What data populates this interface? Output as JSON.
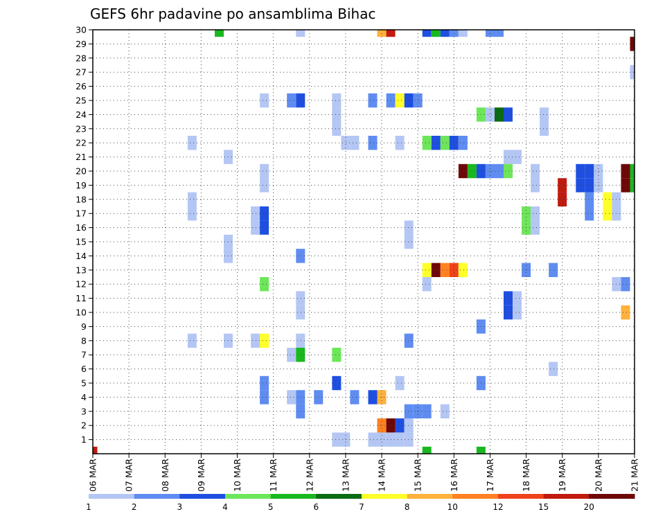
{
  "chart_data": {
    "type": "heatmap",
    "title": "GEFS 6hr padavine po ansamblima Bihac",
    "xlabel": "",
    "ylabel": "",
    "x_ticks": [
      "06 MAR",
      "07 MAR",
      "08 MAR",
      "09 MAR",
      "10 MAR",
      "11 MAR",
      "12 MAR",
      "13 MAR",
      "14 MAR",
      "15 MAR",
      "16 MAR",
      "17 MAR",
      "18 MAR",
      "19 MAR",
      "20 MAR",
      "21 MAR"
    ],
    "y_ticks": [
      "1",
      "2",
      "3",
      "4",
      "5",
      "6",
      "7",
      "8",
      "9",
      "10",
      "11",
      "12",
      "13",
      "14",
      "15",
      "16",
      "17",
      "18",
      "19",
      "20",
      "21",
      "22",
      "23",
      "24",
      "25",
      "26",
      "27",
      "28",
      "29",
      "30"
    ],
    "x_range_days": [
      0,
      15
    ],
    "y_range": [
      0,
      30
    ],
    "grid": true,
    "colorbar": {
      "labels": [
        "1",
        "2",
        "3",
        "4",
        "5",
        "6",
        "7",
        "8",
        "10",
        "12",
        "15",
        "20"
      ],
      "colors": [
        "#b4c6f3",
        "#5f8cf0",
        "#1f4fe0",
        "#6de659",
        "#19b81f",
        "#0b6b12",
        "#ffff2a",
        "#ffb13b",
        "#ff8122",
        "#f0421a",
        "#c11a0e",
        "#6e0808"
      ]
    },
    "cells": [
      {
        "x": 3.5,
        "y": 30,
        "v": 5
      },
      {
        "x": 5.75,
        "y": 30,
        "v": 1
      },
      {
        "x": 8,
        "y": 30,
        "v": 8
      },
      {
        "x": 8.25,
        "y": 30,
        "v": 15
      },
      {
        "x": 9.25,
        "y": 30,
        "v": 3
      },
      {
        "x": 9.5,
        "y": 30,
        "v": 5
      },
      {
        "x": 9.75,
        "y": 30,
        "v": 3
      },
      {
        "x": 10,
        "y": 30,
        "v": 2
      },
      {
        "x": 10.25,
        "y": 30,
        "v": 1
      },
      {
        "x": 11,
        "y": 30,
        "v": 2
      },
      {
        "x": 11.25,
        "y": 30,
        "v": 2
      },
      {
        "x": 15,
        "y": 29,
        "v": 20
      },
      {
        "x": 15,
        "y": 27,
        "v": 1
      },
      {
        "x": 4.75,
        "y": 25,
        "v": 1
      },
      {
        "x": 5.5,
        "y": 25,
        "v": 2
      },
      {
        "x": 5.75,
        "y": 25,
        "v": 3
      },
      {
        "x": 6.75,
        "y": 25,
        "v": 1
      },
      {
        "x": 7.75,
        "y": 25,
        "v": 2
      },
      {
        "x": 8.25,
        "y": 25,
        "v": 2
      },
      {
        "x": 8.5,
        "y": 25,
        "v": 7
      },
      {
        "x": 8.75,
        "y": 25,
        "v": 3
      },
      {
        "x": 9,
        "y": 25,
        "v": 2
      },
      {
        "x": 6.75,
        "y": 24,
        "v": 1
      },
      {
        "x": 10.75,
        "y": 24,
        "v": 4
      },
      {
        "x": 11,
        "y": 24,
        "v": 1
      },
      {
        "x": 11.25,
        "y": 24,
        "v": 6
      },
      {
        "x": 11.5,
        "y": 24,
        "v": 3
      },
      {
        "x": 12.5,
        "y": 24,
        "v": 1
      },
      {
        "x": 6.75,
        "y": 23,
        "v": 1
      },
      {
        "x": 12.5,
        "y": 23,
        "v": 1
      },
      {
        "x": 2.75,
        "y": 22,
        "v": 1
      },
      {
        "x": 7,
        "y": 22,
        "v": 1
      },
      {
        "x": 7.25,
        "y": 22,
        "v": 1
      },
      {
        "x": 7.75,
        "y": 22,
        "v": 2
      },
      {
        "x": 8.5,
        "y": 22,
        "v": 1
      },
      {
        "x": 9.25,
        "y": 22,
        "v": 4
      },
      {
        "x": 9.5,
        "y": 22,
        "v": 3
      },
      {
        "x": 9.75,
        "y": 22,
        "v": 4
      },
      {
        "x": 10,
        "y": 22,
        "v": 3
      },
      {
        "x": 10.25,
        "y": 22,
        "v": 2
      },
      {
        "x": 3.75,
        "y": 21,
        "v": 1
      },
      {
        "x": 11.5,
        "y": 21,
        "v": 1
      },
      {
        "x": 11.75,
        "y": 21,
        "v": 1
      },
      {
        "x": 4.75,
        "y": 20,
        "v": 1
      },
      {
        "x": 10.25,
        "y": 20,
        "v": 20
      },
      {
        "x": 10.5,
        "y": 20,
        "v": 5
      },
      {
        "x": 10.75,
        "y": 20,
        "v": 3
      },
      {
        "x": 11,
        "y": 20,
        "v": 2
      },
      {
        "x": 11.25,
        "y": 20,
        "v": 2
      },
      {
        "x": 11.5,
        "y": 20,
        "v": 4
      },
      {
        "x": 12.25,
        "y": 20,
        "v": 1
      },
      {
        "x": 13.5,
        "y": 20,
        "v": 3
      },
      {
        "x": 13.75,
        "y": 20,
        "v": 3
      },
      {
        "x": 14,
        "y": 20,
        "v": 1
      },
      {
        "x": 14.75,
        "y": 20,
        "v": 20
      },
      {
        "x": 15,
        "y": 20,
        "v": 5
      },
      {
        "x": 4.75,
        "y": 19,
        "v": 1
      },
      {
        "x": 12.25,
        "y": 19,
        "v": 1
      },
      {
        "x": 13,
        "y": 19,
        "v": 15
      },
      {
        "x": 13.5,
        "y": 19,
        "v": 3
      },
      {
        "x": 13.75,
        "y": 19,
        "v": 3
      },
      {
        "x": 14,
        "y": 19,
        "v": 1
      },
      {
        "x": 14.75,
        "y": 19,
        "v": 20
      },
      {
        "x": 15,
        "y": 19,
        "v": 5
      },
      {
        "x": 2.75,
        "y": 18,
        "v": 1
      },
      {
        "x": 13,
        "y": 18,
        "v": 15
      },
      {
        "x": 13.75,
        "y": 18,
        "v": 2
      },
      {
        "x": 14.25,
        "y": 18,
        "v": 7
      },
      {
        "x": 14.5,
        "y": 18,
        "v": 1
      },
      {
        "x": 2.75,
        "y": 17,
        "v": 1
      },
      {
        "x": 4.5,
        "y": 17,
        "v": 1
      },
      {
        "x": 4.75,
        "y": 17,
        "v": 3
      },
      {
        "x": 12,
        "y": 17,
        "v": 4
      },
      {
        "x": 12.25,
        "y": 17,
        "v": 1
      },
      {
        "x": 13.75,
        "y": 17,
        "v": 2
      },
      {
        "x": 14.25,
        "y": 17,
        "v": 7
      },
      {
        "x": 14.5,
        "y": 17,
        "v": 1
      },
      {
        "x": 4.5,
        "y": 16,
        "v": 1
      },
      {
        "x": 4.75,
        "y": 16,
        "v": 3
      },
      {
        "x": 8.75,
        "y": 16,
        "v": 1
      },
      {
        "x": 12,
        "y": 16,
        "v": 4
      },
      {
        "x": 12.25,
        "y": 16,
        "v": 1
      },
      {
        "x": 3.75,
        "y": 15,
        "v": 1
      },
      {
        "x": 8.75,
        "y": 15,
        "v": 1
      },
      {
        "x": 3.75,
        "y": 14,
        "v": 1
      },
      {
        "x": 5.75,
        "y": 14,
        "v": 2
      },
      {
        "x": 9.25,
        "y": 13,
        "v": 7
      },
      {
        "x": 9.5,
        "y": 13,
        "v": 20
      },
      {
        "x": 9.75,
        "y": 13,
        "v": 10
      },
      {
        "x": 10,
        "y": 13,
        "v": 12
      },
      {
        "x": 10.25,
        "y": 13,
        "v": 7
      },
      {
        "x": 12,
        "y": 13,
        "v": 2
      },
      {
        "x": 12.75,
        "y": 13,
        "v": 2
      },
      {
        "x": 4.75,
        "y": 12,
        "v": 4
      },
      {
        "x": 9.25,
        "y": 12,
        "v": 1
      },
      {
        "x": 14.5,
        "y": 12,
        "v": 1
      },
      {
        "x": 14.75,
        "y": 12,
        "v": 2
      },
      {
        "x": 5.75,
        "y": 11,
        "v": 1
      },
      {
        "x": 11.5,
        "y": 11,
        "v": 3
      },
      {
        "x": 11.75,
        "y": 11,
        "v": 1
      },
      {
        "x": 5.75,
        "y": 10,
        "v": 1
      },
      {
        "x": 11.5,
        "y": 10,
        "v": 3
      },
      {
        "x": 11.75,
        "y": 10,
        "v": 1
      },
      {
        "x": 14.75,
        "y": 10,
        "v": 8
      },
      {
        "x": 10.75,
        "y": 9,
        "v": 2
      },
      {
        "x": 2.75,
        "y": 8,
        "v": 1
      },
      {
        "x": 3.75,
        "y": 8,
        "v": 1
      },
      {
        "x": 4.5,
        "y": 8,
        "v": 1
      },
      {
        "x": 4.75,
        "y": 8,
        "v": 7
      },
      {
        "x": 5.75,
        "y": 8,
        "v": 1
      },
      {
        "x": 8.75,
        "y": 8,
        "v": 2
      },
      {
        "x": 5.5,
        "y": 7,
        "v": 1
      },
      {
        "x": 5.75,
        "y": 7,
        "v": 5
      },
      {
        "x": 6.75,
        "y": 7,
        "v": 4
      },
      {
        "x": 12.75,
        "y": 6,
        "v": 1
      },
      {
        "x": 4.75,
        "y": 5,
        "v": 2
      },
      {
        "x": 6.75,
        "y": 5,
        "v": 3
      },
      {
        "x": 8.5,
        "y": 5,
        "v": 1
      },
      {
        "x": 10.75,
        "y": 5,
        "v": 2
      },
      {
        "x": 4.75,
        "y": 4,
        "v": 2
      },
      {
        "x": 5.5,
        "y": 4,
        "v": 1
      },
      {
        "x": 5.75,
        "y": 4,
        "v": 2
      },
      {
        "x": 6.25,
        "y": 4,
        "v": 2
      },
      {
        "x": 7.25,
        "y": 4,
        "v": 2
      },
      {
        "x": 7.75,
        "y": 4,
        "v": 3
      },
      {
        "x": 8,
        "y": 4,
        "v": 8
      },
      {
        "x": 5.75,
        "y": 3,
        "v": 2
      },
      {
        "x": 8.75,
        "y": 3,
        "v": 2
      },
      {
        "x": 9,
        "y": 3,
        "v": 2
      },
      {
        "x": 9.25,
        "y": 3,
        "v": 2
      },
      {
        "x": 9.75,
        "y": 3,
        "v": 1
      },
      {
        "x": 8,
        "y": 2,
        "v": 10
      },
      {
        "x": 8.25,
        "y": 2,
        "v": 20
      },
      {
        "x": 8.5,
        "y": 2,
        "v": 3
      },
      {
        "x": 8.75,
        "y": 2,
        "v": 1
      },
      {
        "x": 6.75,
        "y": 1,
        "v": 1
      },
      {
        "x": 7,
        "y": 1,
        "v": 1
      },
      {
        "x": 7.75,
        "y": 1,
        "v": 1
      },
      {
        "x": 8,
        "y": 1,
        "v": 1
      },
      {
        "x": 8.25,
        "y": 1,
        "v": 1
      },
      {
        "x": 8.5,
        "y": 1,
        "v": 1
      },
      {
        "x": 8.75,
        "y": 1,
        "v": 1
      },
      {
        "x": 9.25,
        "y": 0,
        "v": 5
      },
      {
        "x": 10.75,
        "y": 0,
        "v": 5
      },
      {
        "x": 0,
        "y": 0,
        "v": 15
      }
    ]
  }
}
